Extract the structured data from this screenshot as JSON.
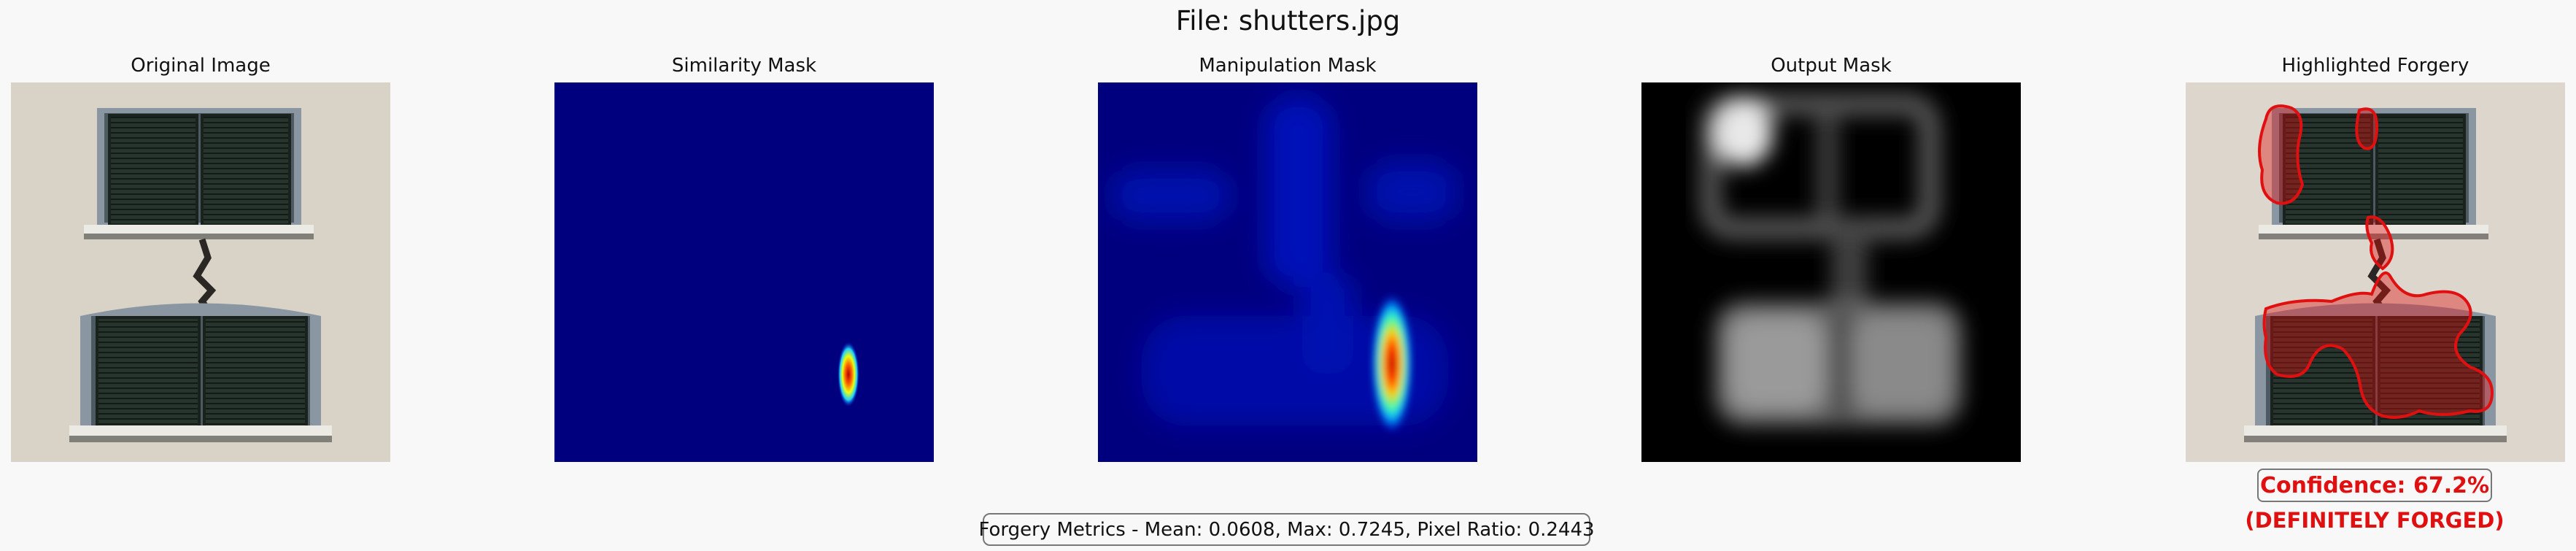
{
  "file_title": "File: shutters.jpg",
  "panels": [
    {
      "title": "Original Image"
    },
    {
      "title": "Similarity Mask"
    },
    {
      "title": "Manipulation Mask"
    },
    {
      "title": "Output Mask"
    },
    {
      "title": "Highlighted Forgery"
    }
  ],
  "metrics_text": "Forgery Metrics - Mean: 0.0608, Max: 0.7245, Pixel Ratio: 0.2443",
  "confidence_text": "Confidence: 67.2%",
  "verdict_text": "(DEFINITELY FORGED)",
  "colors": {
    "background": "#f8f8f8",
    "jet_background": "#00007f",
    "highlight": "#e01010"
  }
}
